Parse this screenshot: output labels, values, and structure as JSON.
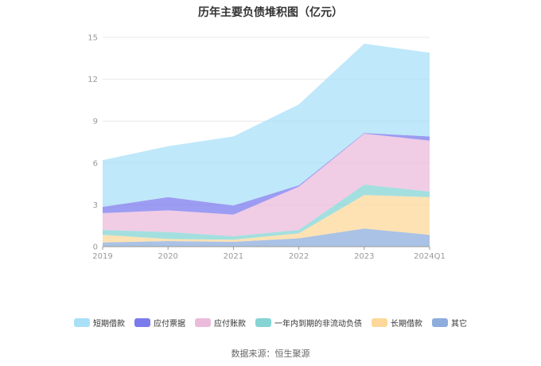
{
  "chart_data": {
    "type": "area",
    "title": "历年主要负债堆积图（亿元）",
    "categories": [
      "2019",
      "2020",
      "2021",
      "2022",
      "2023",
      "2024Q1"
    ],
    "ylim": [
      0,
      15
    ],
    "yticks": [
      "0",
      "3",
      "6",
      "9",
      "12",
      "15"
    ],
    "grid": true,
    "legend_position": "bottom",
    "series": [
      {
        "name": "其它",
        "color": "#8eaddc",
        "values": [
          0.3,
          0.4,
          0.35,
          0.6,
          1.3,
          0.85
        ]
      },
      {
        "name": "长期借款",
        "color": "#fdd89a",
        "values": [
          0.55,
          0.15,
          0.15,
          0.35,
          2.4,
          2.7
        ]
      },
      {
        "name": "一年内到期的非流动负债",
        "color": "#86d4d4",
        "values": [
          0.35,
          0.5,
          0.25,
          0.25,
          0.75,
          0.4
        ]
      },
      {
        "name": "应付账款",
        "color": "#ebbbdc",
        "values": [
          1.2,
          1.55,
          1.55,
          3.1,
          3.65,
          3.65
        ]
      },
      {
        "name": "应付票据",
        "color": "#7b7bee",
        "values": [
          0.45,
          0.95,
          0.65,
          0.1,
          0.05,
          0.3
        ]
      },
      {
        "name": "短期借款",
        "color": "#a9e0f8",
        "values": [
          3.35,
          3.65,
          4.95,
          5.8,
          6.4,
          6.0
        ]
      }
    ],
    "legend_order": [
      "短期借款",
      "应付票据",
      "应付账款",
      "一年内到期的非流动负债",
      "长期借款",
      "其它"
    ]
  },
  "source": "数据来源：恒生聚源"
}
